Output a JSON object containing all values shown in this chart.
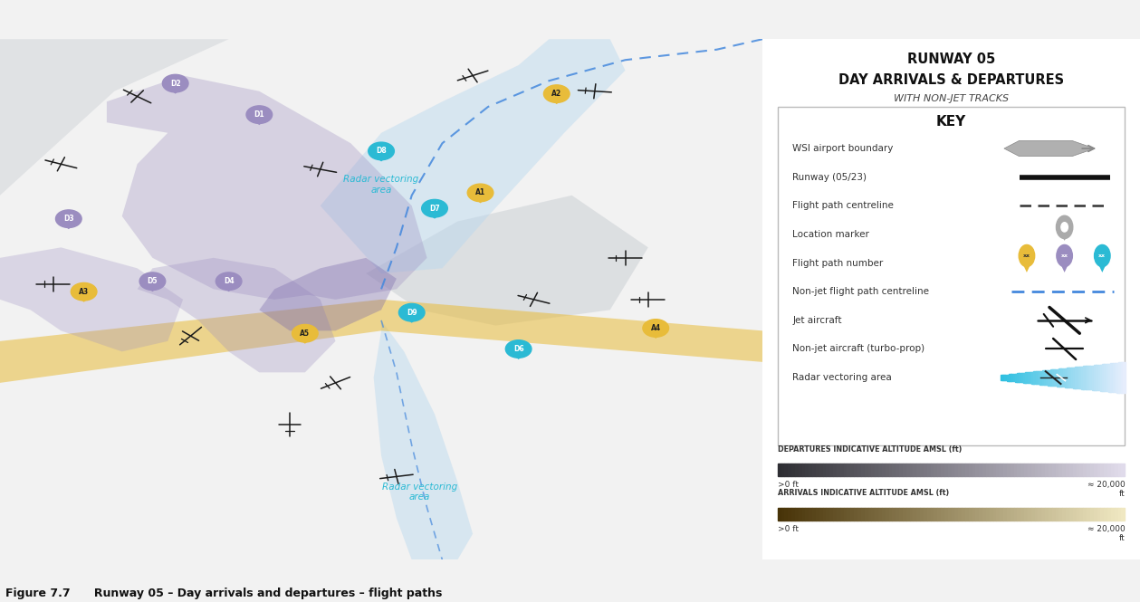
{
  "title_line1": "RUNWAY 05",
  "title_line2": "DAY ARRIVALS & DEPARTURES",
  "subtitle": "WITH NON-JET TRACKS",
  "key_title": "KEY",
  "key_items": [
    "WSI airport boundary",
    "Runway (05/23)",
    "Flight path centreline",
    "Location marker",
    "Flight path number",
    "Non-jet flight path centreline",
    "Jet aircraft",
    "Non-jet aircraft (turbo-prop)",
    "Radar vectoring area"
  ],
  "departures_label": "DEPARTURES INDICATIVE ALTITUDE AMSL (ft)",
  "arrivals_label": "ARRIVALS INDICATIVE ALTITUDE AMSL (ft)",
  "low_label": ">0 ft",
  "high_label": "≈ 20,000\nft",
  "figure_caption": "Figure 7.7      Runway 05 – Day arrivals and departures – flight paths",
  "map_bg": "#dde3e8",
  "panel_bg": "#f2f2f2",
  "text_color": "#333333",
  "title_color": "#111111",
  "yellow_color": "#E8BC3A",
  "purple_color": "#9B8DC0",
  "cyan_color": "#2BBAD4",
  "blue_dashed": "#4488DD",
  "gray_arrow": "#aaaaaa",
  "dep_grad_dark": [
    0.18,
    0.18,
    0.2
  ],
  "dep_grad_light": [
    0.88,
    0.86,
    0.92
  ],
  "arr_grad_dark": [
    0.28,
    0.2,
    0.03
  ],
  "arr_grad_light": [
    0.94,
    0.91,
    0.76
  ]
}
